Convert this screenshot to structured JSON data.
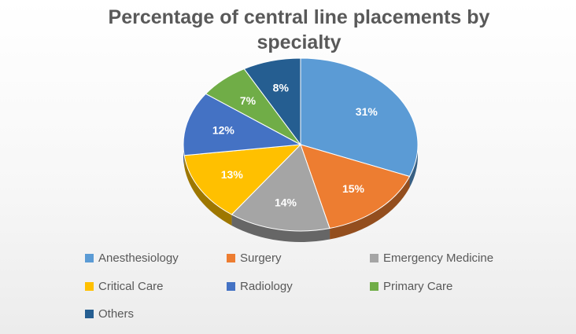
{
  "chart_data": {
    "type": "pie",
    "title": "Percentage of central line placements by specialty",
    "title_lines": [
      "Percentage of central line placements by",
      "specialty"
    ],
    "labels": [
      "Anesthesiology",
      "Surgery",
      "Emergency Medicine",
      "Critical Care",
      "Radiology",
      "Primary Care",
      "Others"
    ],
    "values": [
      31,
      15,
      14,
      13,
      12,
      7,
      8
    ],
    "data_labels": [
      "31%",
      "15%",
      "14%",
      "13%",
      "12%",
      "7%",
      "8%"
    ],
    "colors": [
      "#5B9BD5",
      "#ED7D31",
      "#A5A5A5",
      "#FFC000",
      "#4472C4",
      "#70AD47",
      "#255E91"
    ],
    "style": "3d",
    "legend_position": "bottom"
  }
}
